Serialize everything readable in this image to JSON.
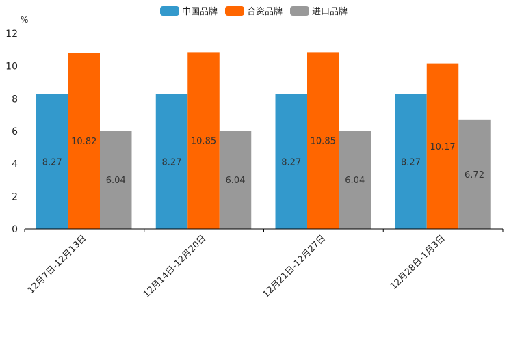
{
  "chart_data": {
    "type": "bar",
    "title": "",
    "ylabel": "%",
    "xlabel": "",
    "ylim": [
      0,
      12
    ],
    "yticks": [
      0,
      2,
      4,
      6,
      8,
      10,
      12
    ],
    "grid": false,
    "legend_position": "top-center",
    "categories": [
      "12月7日-12月13日",
      "12月14日-12月20日",
      "12月21日-12月27日",
      "12月28日-1月3日"
    ],
    "series": [
      {
        "name": "中国品牌",
        "color": "#3399cc",
        "values": [
          8.27,
          8.27,
          8.27,
          8.27
        ],
        "labels": [
          "8.27",
          "8.27",
          "8.27",
          "8.27"
        ]
      },
      {
        "name": "合资品牌",
        "color": "#ff6600",
        "values": [
          10.82,
          10.85,
          10.85,
          10.17
        ],
        "labels": [
          "10.82",
          "10.85",
          "10.85",
          "10.17"
        ]
      },
      {
        "name": "进口品牌",
        "color": "#999999",
        "values": [
          6.04,
          6.04,
          6.04,
          6.72
        ],
        "labels": [
          "6.04",
          "6.04",
          "6.04",
          "6.72"
        ]
      }
    ]
  }
}
